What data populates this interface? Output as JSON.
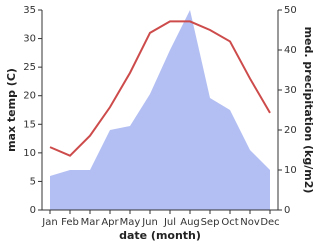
{
  "chart_data": {
    "type": "line_area",
    "categories": [
      "Jan",
      "Feb",
      "Mar",
      "Apr",
      "May",
      "Jun",
      "Jul",
      "Aug",
      "Sep",
      "Oct",
      "Nov",
      "Dec"
    ],
    "x_label": "date (month)",
    "y_label": "max temp (C)",
    "y2_label": "med. precipitation (kg/m2)",
    "ylim": [
      0,
      35
    ],
    "yticks": [
      0,
      5,
      10,
      15,
      20,
      25,
      30,
      35
    ],
    "y2lim": [
      0,
      50
    ],
    "y2ticks": [
      0,
      10,
      20,
      30,
      40,
      50
    ],
    "series": [
      {
        "name": "precipitation",
        "axis": "y2",
        "kind": "area",
        "color": "#b3bff2",
        "values": [
          8.5,
          10,
          10,
          20,
          21,
          29,
          40,
          50,
          28,
          25,
          15,
          10
        ]
      },
      {
        "name": "max temp",
        "axis": "y",
        "kind": "line",
        "color": "#cd4b4b",
        "values": [
          11,
          9.5,
          13,
          18,
          24,
          31,
          33,
          33,
          31.5,
          29.5,
          23,
          17
        ]
      }
    ]
  }
}
